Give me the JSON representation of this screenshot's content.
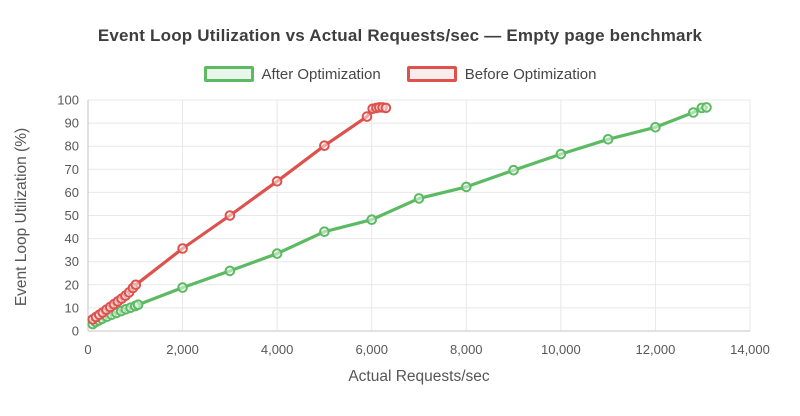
{
  "chart_data": {
    "type": "line",
    "title": "Event Loop Utilization vs Actual Requests/sec — Empty page benchmark",
    "xlabel": "Actual Requests/sec",
    "ylabel": "Event Loop Utilization (%)",
    "xlim": [
      0,
      14000
    ],
    "ylim": [
      0,
      100
    ],
    "grid": true,
    "legend_position": "top-center",
    "marker": "open-circle",
    "background": "#ffffff",
    "grid_color": "#e8e8e8",
    "axis_color": "#c6c6c6",
    "x_ticks": [
      {
        "value": 0,
        "label": "0"
      },
      {
        "value": 2000,
        "label": "2,000"
      },
      {
        "value": 4000,
        "label": "4,000"
      },
      {
        "value": 6000,
        "label": "6,000"
      },
      {
        "value": 8000,
        "label": "8,000"
      },
      {
        "value": 10000,
        "label": "10,000"
      },
      {
        "value": 12000,
        "label": "12,000"
      },
      {
        "value": 14000,
        "label": "14,000"
      }
    ],
    "y_ticks": [
      {
        "value": 0,
        "label": "0"
      },
      {
        "value": 10,
        "label": "10"
      },
      {
        "value": 20,
        "label": "20"
      },
      {
        "value": 30,
        "label": "30"
      },
      {
        "value": 40,
        "label": "40"
      },
      {
        "value": 50,
        "label": "50"
      },
      {
        "value": 60,
        "label": "60"
      },
      {
        "value": 70,
        "label": "70"
      },
      {
        "value": 80,
        "label": "80"
      },
      {
        "value": 90,
        "label": "90"
      },
      {
        "value": 100,
        "label": "100"
      }
    ],
    "series": [
      {
        "name": "After Optimization",
        "color": "#5cba62",
        "swatch_fill": "#e9f6ea",
        "points": [
          [
            100,
            3.0
          ],
          [
            160,
            3.9
          ],
          [
            230,
            4.6
          ],
          [
            300,
            5.3
          ],
          [
            400,
            6.2
          ],
          [
            500,
            7.0
          ],
          [
            600,
            7.8
          ],
          [
            700,
            8.6
          ],
          [
            800,
            9.4
          ],
          [
            900,
            10.1
          ],
          [
            1000,
            10.8
          ],
          [
            1060,
            11.4
          ],
          [
            2000,
            18.8
          ],
          [
            3000,
            26.0
          ],
          [
            4000,
            33.5
          ],
          [
            5000,
            43.0
          ],
          [
            6000,
            48.2
          ],
          [
            7000,
            57.4
          ],
          [
            8000,
            62.4
          ],
          [
            9000,
            69.6
          ],
          [
            10000,
            76.6
          ],
          [
            11000,
            83.0
          ],
          [
            12000,
            88.2
          ],
          [
            12800,
            94.6
          ],
          [
            12980,
            96.6
          ],
          [
            13080,
            96.8
          ]
        ]
      },
      {
        "name": "Before Optimization",
        "color": "#dd524d",
        "swatch_fill": "#fbedec",
        "points": [
          [
            100,
            5.0
          ],
          [
            170,
            6.0
          ],
          [
            240,
            7.0
          ],
          [
            310,
            8.0
          ],
          [
            390,
            9.2
          ],
          [
            470,
            10.4
          ],
          [
            550,
            11.6
          ],
          [
            630,
            12.8
          ],
          [
            710,
            14.0
          ],
          [
            790,
            15.3
          ],
          [
            870,
            16.7
          ],
          [
            950,
            18.6
          ],
          [
            1010,
            20.0
          ],
          [
            2000,
            35.7
          ],
          [
            3000,
            50.0
          ],
          [
            4000,
            64.8
          ],
          [
            5000,
            80.2
          ],
          [
            5900,
            92.8
          ],
          [
            6020,
            96.2
          ],
          [
            6100,
            96.6
          ],
          [
            6160,
            96.8
          ],
          [
            6230,
            96.8
          ],
          [
            6300,
            96.6
          ]
        ]
      }
    ]
  }
}
